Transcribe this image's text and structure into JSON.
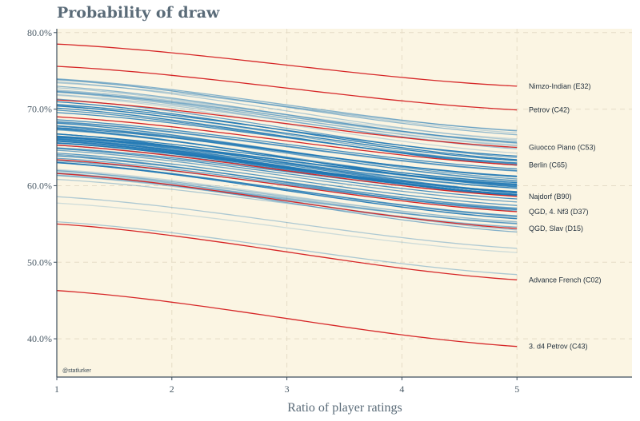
{
  "chart_data": {
    "type": "line",
    "title": "Probability of draw",
    "xlabel": "Ratio of player ratings",
    "ylabel": "",
    "x": [
      1,
      1.5,
      2,
      2.5,
      3,
      3.5,
      4,
      4.5,
      5
    ],
    "xlim": [
      1,
      6
    ],
    "ylim": [
      35,
      80.5
    ],
    "x_ticks": [
      "1",
      "2",
      "3",
      "4",
      "5"
    ],
    "y_ticks": [
      "40.0%",
      "50.0%",
      "60.0%",
      "70.0%",
      "80.0%"
    ],
    "grid": true,
    "credit": "@statlurker",
    "highlighted_series": [
      {
        "name": "Nimzo-Indian (E32)",
        "start": 78.5,
        "end": 73.0
      },
      {
        "name": "Petrov (C42)",
        "start": 75.6,
        "end": 69.9
      },
      {
        "name": "Giuocco Piano (C53)",
        "start": 71.2,
        "end": 65.0
      },
      {
        "name": "Berlin (C65)",
        "start": 69.0,
        "end": 62.7
      },
      {
        "name": "Najdorf (B90)",
        "start": 65.3,
        "end": 58.6
      },
      {
        "name": "QGD, 4. Nf3 (D37)",
        "start": 63.4,
        "end": 56.6
      },
      {
        "name": "QGD, Slav (D15)",
        "start": 61.6,
        "end": 54.4
      },
      {
        "name": "Advance French (C02)",
        "start": 55.0,
        "end": 47.7
      },
      {
        "name": "3. d4 Petrov (C43)",
        "start": 46.3,
        "end": 39.0
      }
    ],
    "background_series_count": 80,
    "background_series_range": [
      45.8,
      75.0
    ],
    "colors": {
      "highlight": "#d62728",
      "background_series": "#1f77b4",
      "plot_background": "#fbf5e3",
      "axis": "#3d4e5c",
      "grid": "#e5dcc6"
    }
  }
}
